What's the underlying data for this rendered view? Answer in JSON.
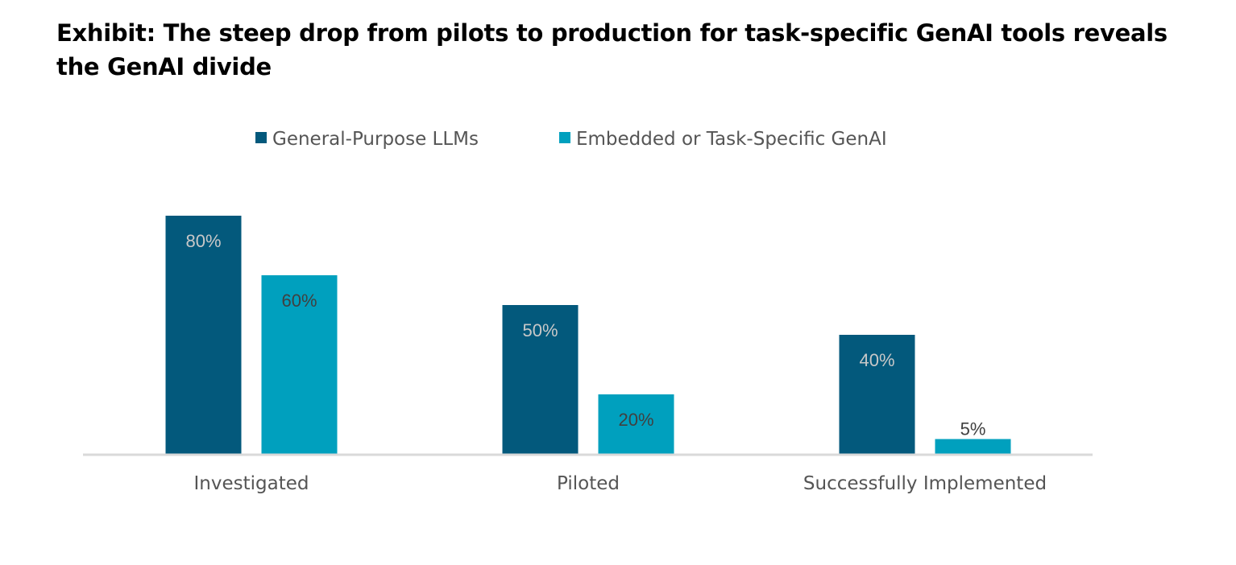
{
  "chart_data": {
    "type": "bar",
    "title": "Exhibit: The steep drop from pilots to production for task-specific GenAI tools reveals the GenAI divide",
    "xlabel": "",
    "ylabel": "",
    "categories": [
      "Investigated",
      "Piloted",
      "Successfully Implemented"
    ],
    "series": [
      {
        "name": "General-Purpose LLMs",
        "values": [
          80,
          50,
          40
        ],
        "color": "#03597c",
        "label_color": "#c8c8c8"
      },
      {
        "name": "Embedded or Task-Specific GenAI",
        "values": [
          60,
          20,
          5
        ],
        "color": "#00a0be",
        "label_color": "#404040"
      }
    ],
    "value_suffix": "%",
    "ylim": [
      0,
      85
    ],
    "grid": false,
    "legend": "top-center",
    "axis_color": "#d9d9d9"
  }
}
